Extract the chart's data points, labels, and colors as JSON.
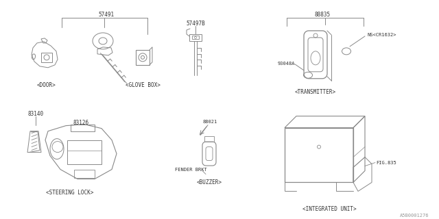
{
  "bg_color": "#ffffff",
  "line_color": "#888888",
  "text_color": "#333333",
  "fig_width": 6.4,
  "fig_height": 3.2,
  "dpi": 100,
  "watermark": "A5B0001276",
  "label_57491": "57491",
  "label_57497B": "57497B",
  "label_88835": "88835",
  "label_93048A": "93048A",
  "label_NS": "NS<CR1632>",
  "label_83140": "83140",
  "label_83126": "83126",
  "label_88021": "88021",
  "label_FENDER": "FENDER BRKT",
  "label_DOOR": "<DOOR>",
  "label_GLOVE": "<GLOVE BOX>",
  "label_TRANS": "<TRANSMITTER>",
  "label_STEER": "<STEERING LOCK>",
  "label_BUZZER": "<BUZZER>",
  "label_INT": "<INTEGRATED UNIT>",
  "label_FIG": "FIG.835"
}
